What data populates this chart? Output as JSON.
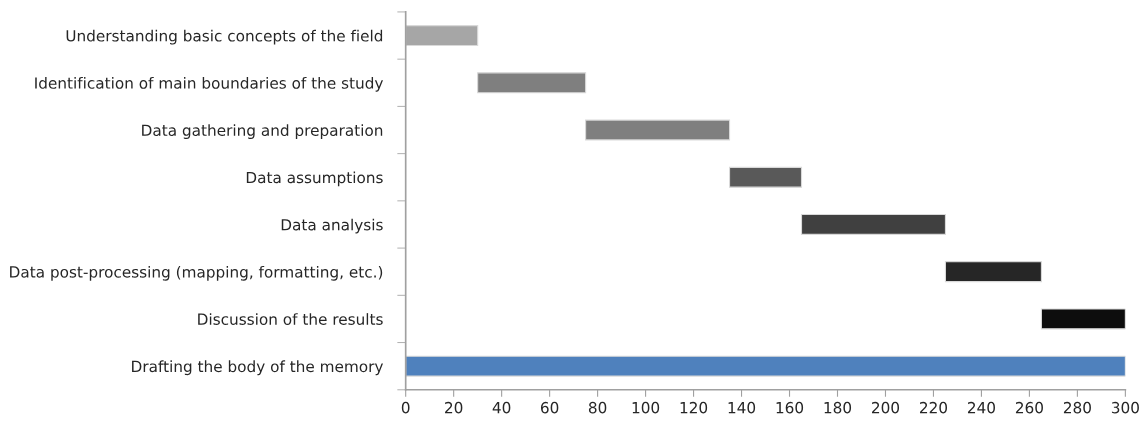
{
  "chart_data": {
    "type": "bar",
    "orientation": "horizontal",
    "categories": [
      "Understanding basic concepts of the field",
      "Identification of main boundaries of the study",
      "Data gathering and preparation",
      "Data assumptions",
      "Data analysis",
      "Data post-processing (mapping, formatting, etc.)",
      "Discussion of the results",
      "Drafting the body of the memory"
    ],
    "base": [
      0,
      30,
      75,
      135,
      165,
      225,
      265,
      0
    ],
    "values": [
      30,
      45,
      60,
      30,
      60,
      40,
      35,
      300
    ],
    "colors": [
      "#a6a6a6",
      "#7f7f7f",
      "#7f7f7f",
      "#595959",
      "#404040",
      "#262626",
      "#0d0d0d",
      "#4f81bd"
    ],
    "xlim": [
      0,
      300
    ],
    "xticks": [
      0,
      20,
      40,
      60,
      80,
      100,
      120,
      140,
      160,
      180,
      200,
      220,
      240,
      260,
      280,
      300
    ],
    "grid": false
  }
}
